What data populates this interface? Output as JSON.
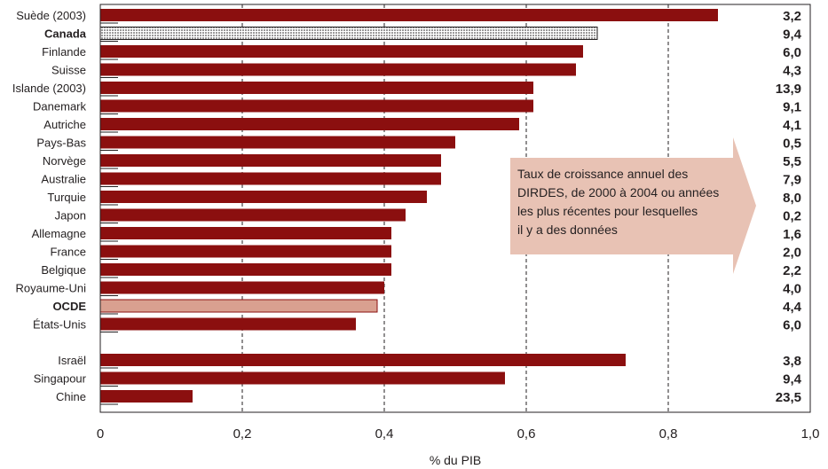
{
  "chart_data": {
    "type": "bar",
    "orientation": "horizontal",
    "xlabel": "% du PIB",
    "xlim": [
      0,
      1.0
    ],
    "xticks": [
      "0",
      "0,2",
      "0,4",
      "0,6",
      "0,8",
      "1,0"
    ],
    "grid": "vertical dashed",
    "colors": {
      "bar": "#8b0f0f",
      "oecd_bar": "#d9a090",
      "canada_pattern": "dotted",
      "callout": "#e8c2b4"
    },
    "categories": [
      {
        "name": "Suède (2003)",
        "value": 0.87,
        "growth": "3,2"
      },
      {
        "name": "Canada",
        "value": 0.7,
        "growth": "9,4",
        "bold": true,
        "style": "dotted"
      },
      {
        "name": "Finlande",
        "value": 0.68,
        "growth": "6,0"
      },
      {
        "name": "Suisse",
        "value": 0.67,
        "growth": "4,3"
      },
      {
        "name": "Islande (2003)",
        "value": 0.61,
        "growth": "13,9"
      },
      {
        "name": "Danemark",
        "value": 0.61,
        "growth": "9,1"
      },
      {
        "name": "Autriche",
        "value": 0.59,
        "growth": "4,1"
      },
      {
        "name": "Pays-Bas",
        "value": 0.5,
        "growth": "0,5"
      },
      {
        "name": "Norvège",
        "value": 0.48,
        "growth": "5,5"
      },
      {
        "name": "Australie",
        "value": 0.48,
        "growth": "7,9"
      },
      {
        "name": "Turquie",
        "value": 0.46,
        "growth": "8,0"
      },
      {
        "name": "Japon",
        "value": 0.43,
        "growth": "0,2"
      },
      {
        "name": "Allemagne",
        "value": 0.41,
        "growth": "1,6"
      },
      {
        "name": "France",
        "value": 0.41,
        "growth": "2,0"
      },
      {
        "name": "Belgique",
        "value": 0.41,
        "growth": "2,2"
      },
      {
        "name": "Royaume-Uni",
        "value": 0.4,
        "growth": "4,0"
      },
      {
        "name": "OCDE",
        "value": 0.39,
        "growth": "4,4",
        "bold": true,
        "style": "light"
      },
      {
        "name": "États-Unis",
        "value": 0.36,
        "growth": "6,0"
      },
      {
        "name": "Israël",
        "value": 0.74,
        "growth": "3,8",
        "group": 2
      },
      {
        "name": "Singapour",
        "value": 0.57,
        "growth": "9,4",
        "group": 2
      },
      {
        "name": "Chine",
        "value": 0.13,
        "growth": "23,5",
        "group": 2
      }
    ],
    "callout": "Taux de croissance annuel des\nDIRDES, de 2000 à 2004 ou années\nles plus récentes pour lesquelles\nil y a des données"
  }
}
